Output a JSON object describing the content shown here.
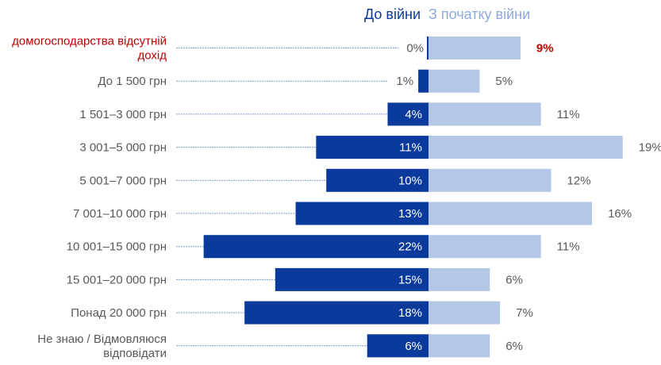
{
  "chart_data": {
    "type": "bar",
    "orientation": "horizontal-diverging",
    "categories": [
      "домогосподарства відсутній дохід",
      "До 1 500 грн",
      "1 501–3 000 грн",
      "3 001–5 000 грн",
      "5 001–7 000 грн",
      "7 001–10 000 грн",
      "10 001–15 000 грн",
      "15 001–20 000 грн",
      "Понад 20 000 грн",
      "Не знаю / Відмовляюся відповідати"
    ],
    "category_lines": [
      [
        "домогосподарства відсутній",
        "дохід"
      ],
      [
        "До 1 500 грн"
      ],
      [
        "1 501–3 000 грн"
      ],
      [
        "3 001–5 000 грн"
      ],
      [
        "5 001–7 000 грн"
      ],
      [
        "7 001–10 000 грн"
      ],
      [
        "10 001–15 000 грн"
      ],
      [
        "15 001–20 000 грн"
      ],
      [
        "Понад 20 000 грн"
      ],
      [
        "Не знаю / Відмовляюся",
        "відповідати"
      ]
    ],
    "series": [
      {
        "name": "До війни",
        "values": [
          0,
          1,
          4,
          11,
          10,
          13,
          22,
          15,
          18,
          6
        ],
        "labels": [
          "0%",
          "1%",
          "4%",
          "11%",
          "10%",
          "13%",
          "22%",
          "15%",
          "18%",
          "6%"
        ],
        "color": "#0a3a9c"
      },
      {
        "name": "З початку війни",
        "values": [
          9,
          5,
          11,
          19,
          12,
          16,
          11,
          6,
          7,
          6
        ],
        "labels": [
          "9%",
          "5%",
          "11%",
          "19%",
          "12%",
          "16%",
          "11%",
          "6%",
          "7%",
          "6%"
        ],
        "color": "#b4c7e7"
      }
    ],
    "highlight_color": "#c00000",
    "highlight_category_index": 0,
    "unit": "%"
  }
}
